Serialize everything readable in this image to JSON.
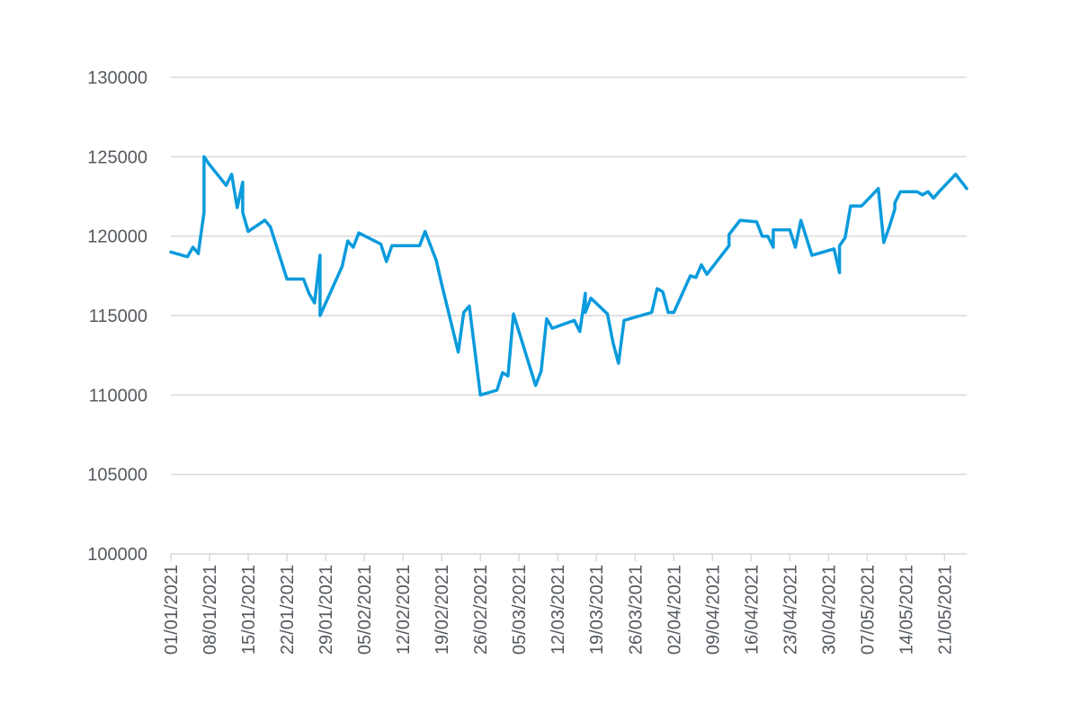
{
  "chart_data": {
    "type": "line",
    "title": "",
    "xlabel": "",
    "ylabel": "",
    "grid": true,
    "legend": "none",
    "line_color": "#0a9bdc",
    "grid_color": "#d9d9d9",
    "text_color": "#555a60",
    "ylim": [
      100000,
      130000
    ],
    "yticks": [
      "100000",
      "105000",
      "110000",
      "115000",
      "120000",
      "125000",
      "130000"
    ],
    "xlim": [
      "2021-01-01",
      "2021-05-25"
    ],
    "xticks": [
      "01/01/2021",
      "08/01/2021",
      "15/01/2021",
      "22/01/2021",
      "29/01/2021",
      "05/02/2021",
      "12/02/2021",
      "19/02/2021",
      "26/02/2021",
      "05/03/2021",
      "12/03/2021",
      "19/03/2021",
      "26/03/2021",
      "02/04/2021",
      "09/04/2021",
      "16/04/2021",
      "23/04/2021",
      "30/04/2021",
      "07/05/2021",
      "14/05/2021",
      "21/05/2021"
    ],
    "series": [
      {
        "x": [
          "2021-01-01",
          "2021-01-04",
          "2021-01-05",
          "2021-01-06",
          "2021-01-06",
          "2021-01-07",
          "2021-01-07",
          "2021-01-07",
          "2021-01-07",
          "2021-01-08",
          "2021-01-11",
          "2021-01-12",
          "2021-01-13",
          "2021-01-14",
          "2021-01-14",
          "2021-01-15",
          "2021-01-18",
          "2021-01-19",
          "2021-01-22",
          "2021-01-25",
          "2021-01-26",
          "2021-01-27",
          "2021-01-28",
          "2021-01-28",
          "2021-02-01",
          "2021-02-02",
          "2021-02-03",
          "2021-02-04",
          "2021-02-08",
          "2021-02-09",
          "2021-02-10",
          "2021-02-15",
          "2021-02-16",
          "2021-02-18",
          "2021-02-19",
          "2021-02-22",
          "2021-02-23",
          "2021-02-24",
          "2021-02-26",
          "2021-03-01",
          "2021-03-02",
          "2021-03-03",
          "2021-03-04",
          "2021-03-08",
          "2021-03-09",
          "2021-03-10",
          "2021-03-11",
          "2021-03-15",
          "2021-03-16",
          "2021-03-17",
          "2021-03-17",
          "2021-03-18",
          "2021-03-21",
          "2021-03-22",
          "2021-03-23",
          "2021-03-24",
          "2021-03-29",
          "2021-03-30",
          "2021-03-31",
          "2021-04-01",
          "2021-04-02",
          "2021-04-05",
          "2021-04-06",
          "2021-04-07",
          "2021-04-08",
          "2021-04-12",
          "2021-04-12",
          "2021-04-14",
          "2021-04-17",
          "2021-04-18",
          "2021-04-19",
          "2021-04-20",
          "2021-04-20",
          "2021-04-23",
          "2021-04-24",
          "2021-04-25",
          "2021-04-27",
          "2021-05-01",
          "2021-05-02",
          "2021-05-02",
          "2021-05-03",
          "2021-05-04",
          "2021-05-06",
          "2021-05-09",
          "2021-05-10",
          "2021-05-11",
          "2021-05-12",
          "2021-05-12",
          "2021-05-13",
          "2021-05-16",
          "2021-05-17",
          "2021-05-18",
          "2021-05-19",
          "2021-05-20",
          "2021-05-23",
          "2021-05-25"
        ],
        "values": [
          119000,
          118700,
          119300,
          118900,
          119000,
          121500,
          122300,
          124000,
          125000,
          124500,
          123200,
          123900,
          121800,
          123400,
          121500,
          120300,
          121000,
          120600,
          117300,
          117300,
          116400,
          115800,
          118800,
          115000,
          118100,
          119700,
          119300,
          120200,
          119500,
          118400,
          119400,
          119400,
          120300,
          118500,
          117000,
          112700,
          115200,
          115600,
          110000,
          110300,
          111400,
          111200,
          115100,
          110600,
          111500,
          114800,
          114200,
          114700,
          114000,
          116400,
          115200,
          116100,
          115100,
          113300,
          112000,
          114700,
          115200,
          116700,
          116500,
          115200,
          115200,
          117500,
          117400,
          118200,
          117600,
          119400,
          120100,
          121000,
          120900,
          120000,
          120000,
          119300,
          120400,
          120400,
          119300,
          121000,
          118800,
          119200,
          117700,
          119400,
          119900,
          121900,
          121900,
          123000,
          119600,
          120600,
          121700,
          122100,
          122800,
          122800,
          122600,
          122800,
          122400,
          122800,
          123900,
          123000
        ]
      }
    ]
  }
}
